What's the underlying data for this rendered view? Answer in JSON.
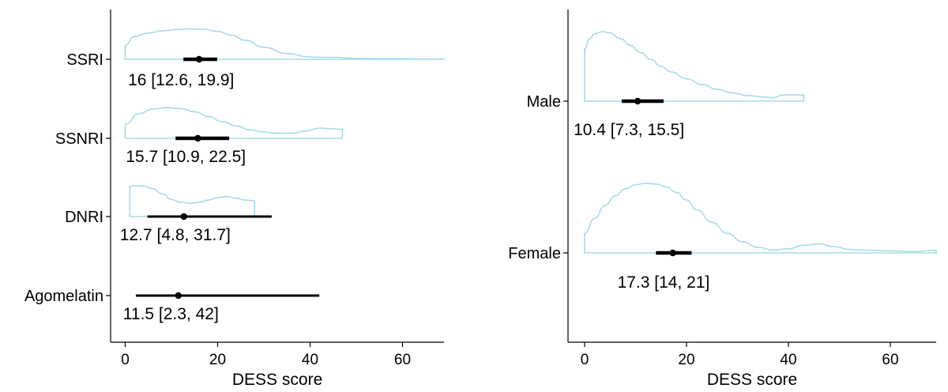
{
  "chart_data": [
    {
      "type": "violin",
      "panel": "left",
      "xlabel": "DESS score",
      "ylabel": "",
      "xlim": [
        0,
        69
      ],
      "xticks": [
        0,
        20,
        40,
        60
      ],
      "grid": false,
      "categories": [
        "SSRI",
        "SSNRI",
        "DNRI",
        "Agomelatin"
      ],
      "summaries": [
        {
          "category": "SSRI",
          "median": 16,
          "q1": 12.6,
          "q3": 19.9,
          "label": "16 [12.6, 19.9]"
        },
        {
          "category": "SSNRI",
          "median": 15.7,
          "q1": 10.9,
          "q3": 22.5,
          "label": "15.7 [10.9, 22.5]"
        },
        {
          "category": "DNRI",
          "median": 12.7,
          "q1": 4.8,
          "q3": 31.7,
          "label": "12.7 [4.8, 31.7]"
        },
        {
          "category": "Agomelatin",
          "median": 11.5,
          "q1": 2.3,
          "q3": 42,
          "label": "11.5 [2.3, 42]"
        }
      ],
      "densities": [
        {
          "category": "SSRI",
          "x": [
            0,
            2,
            5,
            8,
            11,
            14,
            17,
            20,
            23,
            26,
            30,
            35,
            40,
            45,
            50,
            55,
            60,
            65,
            69
          ],
          "y": [
            0.45,
            0.72,
            0.83,
            0.9,
            0.94,
            0.96,
            0.95,
            0.88,
            0.76,
            0.6,
            0.38,
            0.18,
            0.07,
            0.06,
            0.03,
            0.02,
            0.02,
            0.01,
            0.01
          ]
        },
        {
          "category": "SSNRI",
          "x": [
            0,
            3,
            6,
            9,
            12,
            15,
            18,
            21,
            24,
            27,
            30,
            33,
            36,
            39,
            42,
            45,
            47
          ],
          "y": [
            0.45,
            0.78,
            0.93,
            0.97,
            0.94,
            0.84,
            0.69,
            0.53,
            0.39,
            0.27,
            0.2,
            0.16,
            0.16,
            0.23,
            0.32,
            0.3,
            0.28
          ]
        },
        {
          "category": "DNRI",
          "x": [
            1,
            2,
            4,
            6,
            8,
            10,
            12,
            14,
            16,
            18,
            20,
            22,
            24,
            26,
            28
          ],
          "y": [
            0.95,
            0.98,
            0.96,
            0.88,
            0.72,
            0.54,
            0.45,
            0.42,
            0.45,
            0.52,
            0.6,
            0.63,
            0.58,
            0.52,
            0.5
          ]
        },
        {
          "category": "Agomelatin",
          "x": [],
          "y": []
        }
      ]
    },
    {
      "type": "violin",
      "panel": "right",
      "xlabel": "DESS score",
      "ylabel": "",
      "xlim": [
        0,
        69
      ],
      "xticks": [
        0,
        20,
        40,
        60
      ],
      "grid": false,
      "categories": [
        "Male",
        "Female"
      ],
      "summaries": [
        {
          "category": "Male",
          "median": 10.4,
          "q1": 7.3,
          "q3": 15.5,
          "label": "10.4 [7.3, 15.5]"
        },
        {
          "category": "Female",
          "median": 17.3,
          "q1": 14,
          "q3": 21,
          "label": "17.3 [14, 21]"
        }
      ],
      "densities": [
        {
          "category": "Male",
          "x": [
            0,
            1,
            2,
            3.5,
            5,
            7,
            9,
            11,
            13,
            15,
            17,
            20,
            23,
            26,
            29,
            32,
            35,
            37,
            39,
            41,
            43
          ],
          "y": [
            0.75,
            0.9,
            0.97,
            1.0,
            0.98,
            0.9,
            0.8,
            0.7,
            0.6,
            0.5,
            0.42,
            0.32,
            0.24,
            0.17,
            0.12,
            0.08,
            0.06,
            0.05,
            0.09,
            0.09,
            0.09
          ]
        },
        {
          "category": "Female",
          "x": [
            0,
            2,
            4,
            6,
            8,
            10,
            12,
            14,
            16,
            18,
            20,
            22,
            25,
            28,
            31,
            34,
            37,
            40,
            43,
            46,
            49,
            52,
            55,
            60,
            65,
            69
          ],
          "y": [
            0.28,
            0.5,
            0.68,
            0.82,
            0.92,
            0.98,
            1.0,
            0.99,
            0.95,
            0.87,
            0.76,
            0.62,
            0.44,
            0.28,
            0.16,
            0.08,
            0.04,
            0.06,
            0.11,
            0.13,
            0.09,
            0.05,
            0.04,
            0.03,
            0.02,
            0.04
          ]
        }
      ]
    }
  ],
  "colors": {
    "violin_stroke": "#a9dbe6",
    "interval": "#000000",
    "axis": "#000000"
  }
}
